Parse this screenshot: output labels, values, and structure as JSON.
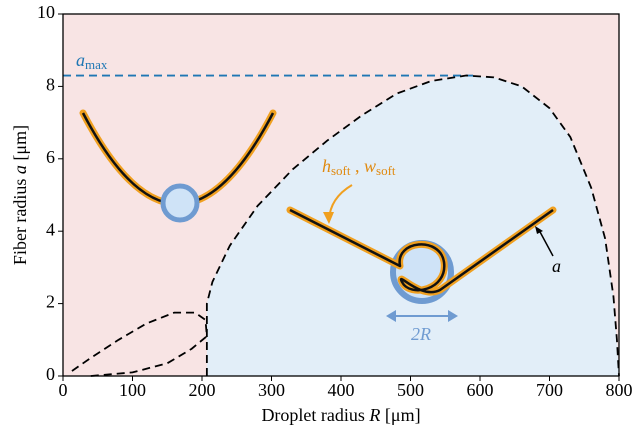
{
  "chart_data": {
    "type": "line",
    "xlabel": [
      "Droplet radius ",
      "R",
      " [μm]"
    ],
    "ylabel": [
      "Fiber radius ",
      "a",
      " [μm]"
    ],
    "xlim": [
      0,
      800
    ],
    "xticks": [
      0,
      100,
      200,
      300,
      400,
      500,
      600,
      700,
      800
    ],
    "ylim": [
      0,
      10
    ],
    "yticks": [
      0,
      2,
      4,
      6,
      8,
      10
    ],
    "background": "#f8e4e4",
    "series": [
      {
        "color": "#1f77b4",
        "dashed": true,
        "x": [
          0,
          590
        ],
        "values": [
          8.3,
          8.3
        ]
      },
      {
        "color": "#000000",
        "dashed": true,
        "fill": "#e2eef8",
        "x": [
          207,
          207,
          215,
          240,
          280,
          330,
          380,
          430,
          480,
          530,
          580,
          620,
          660,
          700,
          730,
          760,
          780,
          792,
          797,
          800
        ],
        "values": [
          0,
          2.0,
          2.6,
          3.6,
          4.7,
          5.7,
          6.5,
          7.2,
          7.8,
          8.15,
          8.3,
          8.25,
          8.0,
          7.4,
          6.6,
          5.2,
          3.8,
          2.2,
          1.0,
          0
        ]
      },
      {
        "color": "#000000",
        "dashed": true,
        "x": [
          40,
          100,
          150,
          185,
          207,
          205,
          190,
          160,
          120,
          80,
          40,
          10
        ],
        "values": [
          0,
          0.1,
          0.35,
          0.75,
          1.1,
          1.55,
          1.75,
          1.75,
          1.45,
          1.0,
          0.5,
          0.1
        ]
      }
    ],
    "annotations": {
      "amax": {
        "text": "a",
        "sub": "max"
      },
      "hw": [
        {
          "text": "h",
          "sub": "soft"
        },
        {
          "text": " , "
        },
        {
          "text": "w",
          "sub": "soft"
        }
      ],
      "a": "a",
      "twoR": "2R"
    }
  }
}
